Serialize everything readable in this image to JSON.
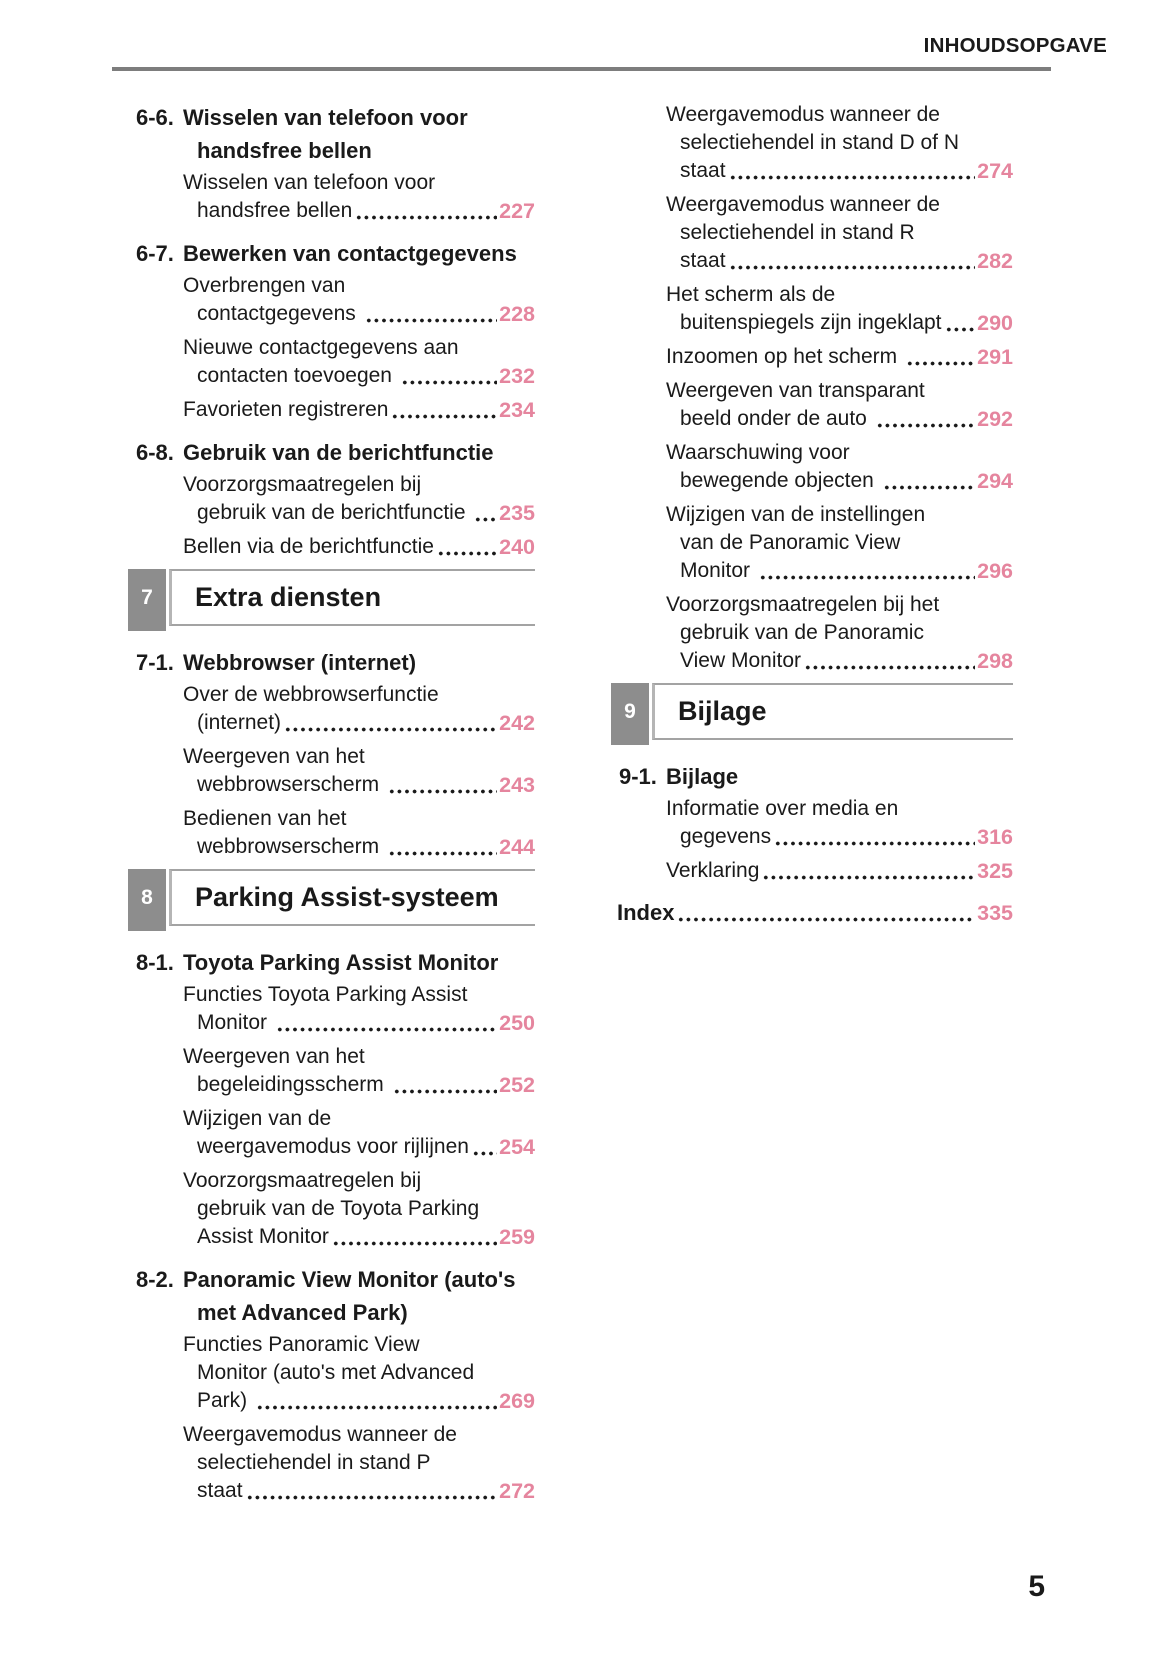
{
  "header": {
    "title": "INHOUDSOPGAVE"
  },
  "footer": {
    "page_number": "5"
  },
  "colors": {
    "page_number_pink": "#e5859e",
    "section_badge_gray": "#8d8d8d",
    "header_rule_gray": "#7d7d7d",
    "section_border_gray": "#a3a3a3",
    "text_black": "#1a1a1a"
  },
  "columns": {
    "left": [
      {
        "type": "chapter",
        "number": "6-6.",
        "lines": [
          "Wisselen van telefoon voor",
          "handsfree bellen"
        ]
      },
      {
        "type": "entry",
        "lines": [
          "Wisselen van telefoon voor",
          "handsfree bellen"
        ],
        "page": "227"
      },
      {
        "type": "chapter",
        "number": "6-7.",
        "lines": [
          "Bewerken van contactgegevens"
        ]
      },
      {
        "type": "entry",
        "lines": [
          "Overbrengen van",
          "contactgegevens "
        ],
        "page": "228"
      },
      {
        "type": "entry",
        "lines": [
          "Nieuwe contactgegevens aan",
          "contacten toevoegen "
        ],
        "page": "232"
      },
      {
        "type": "entry",
        "lines": [
          "Favorieten registreren"
        ],
        "page": "234"
      },
      {
        "type": "chapter",
        "number": "6-8.",
        "lines": [
          "Gebruik van de berichtfunctie"
        ]
      },
      {
        "type": "entry",
        "lines": [
          "Voorzorgsmaatregelen bij",
          "gebruik van de berichtfunctie "
        ],
        "page": "235"
      },
      {
        "type": "entry",
        "lines": [
          "Bellen via de berichtfunctie"
        ],
        "page": "240"
      },
      {
        "type": "section",
        "number": "7",
        "title": "Extra diensten"
      },
      {
        "type": "chapter",
        "number": "7-1.",
        "lines": [
          "Webbrowser (internet)"
        ]
      },
      {
        "type": "entry",
        "lines": [
          "Over de webbrowserfunctie",
          "(internet)"
        ],
        "page": "242"
      },
      {
        "type": "entry",
        "lines": [
          "Weergeven van het",
          "webbrowserscherm "
        ],
        "page": "243"
      },
      {
        "type": "entry",
        "lines": [
          "Bedienen van het",
          "webbrowserscherm "
        ],
        "page": "244"
      },
      {
        "type": "section",
        "number": "8",
        "title": "Parking Assist-systeem"
      },
      {
        "type": "chapter",
        "number": "8-1.",
        "lines": [
          "Toyota Parking Assist Monitor"
        ]
      },
      {
        "type": "entry",
        "lines": [
          "Functies Toyota Parking Assist",
          "Monitor "
        ],
        "page": "250"
      },
      {
        "type": "entry",
        "lines": [
          "Weergeven van het",
          "begeleidingsscherm "
        ],
        "page": "252"
      },
      {
        "type": "entry",
        "lines": [
          "Wijzigen van de",
          "weergavemodus voor rijlijnen"
        ],
        "page": "254"
      },
      {
        "type": "entry",
        "lines": [
          "Voorzorgsmaatregelen bij",
          "gebruik van de Toyota Parking",
          "Assist Monitor"
        ],
        "page": "259"
      },
      {
        "type": "chapter",
        "number": "8-2.",
        "lines": [
          "Panoramic View Monitor (auto's",
          "met Advanced Park)"
        ]
      },
      {
        "type": "entry",
        "lines": [
          "Functies Panoramic View",
          "Monitor (auto's met Advanced",
          "Park) "
        ],
        "page": "269"
      },
      {
        "type": "entry",
        "lines": [
          "Weergavemodus wanneer de",
          "selectiehendel in stand P",
          "staat"
        ],
        "page": "272"
      }
    ],
    "right": [
      {
        "type": "entry",
        "lines": [
          "Weergavemodus wanneer de",
          "selectiehendel in stand D of N",
          "staat"
        ],
        "page": "274"
      },
      {
        "type": "entry",
        "lines": [
          "Weergavemodus wanneer de",
          "selectiehendel in stand R",
          "staat"
        ],
        "page": "282"
      },
      {
        "type": "entry",
        "lines": [
          "Het scherm als de",
          "buitenspiegels zijn ingeklapt"
        ],
        "page": "290"
      },
      {
        "type": "entry",
        "lines": [
          "Inzoomen op het scherm "
        ],
        "page": "291"
      },
      {
        "type": "entry",
        "lines": [
          "Weergeven van transparant",
          "beeld onder de auto "
        ],
        "page": "292"
      },
      {
        "type": "entry",
        "lines": [
          "Waarschuwing voor",
          "bewegende objecten "
        ],
        "page": "294"
      },
      {
        "type": "entry",
        "lines": [
          "Wijzigen van de instellingen",
          "van de Panoramic View",
          "Monitor "
        ],
        "page": "296"
      },
      {
        "type": "entry",
        "lines": [
          "Voorzorgsmaatregelen bij het",
          "gebruik van de Panoramic",
          "View Monitor"
        ],
        "page": "298"
      },
      {
        "type": "section",
        "number": "9",
        "title": "Bijlage"
      },
      {
        "type": "chapter",
        "number": "9-1.",
        "lines": [
          "Bijlage"
        ]
      },
      {
        "type": "entry",
        "lines": [
          "Informatie over media en",
          "gegevens"
        ],
        "page": "316"
      },
      {
        "type": "entry",
        "lines": [
          "Verklaring"
        ],
        "page": "325"
      },
      {
        "type": "index",
        "label": "Index",
        "page": "335"
      }
    ]
  }
}
